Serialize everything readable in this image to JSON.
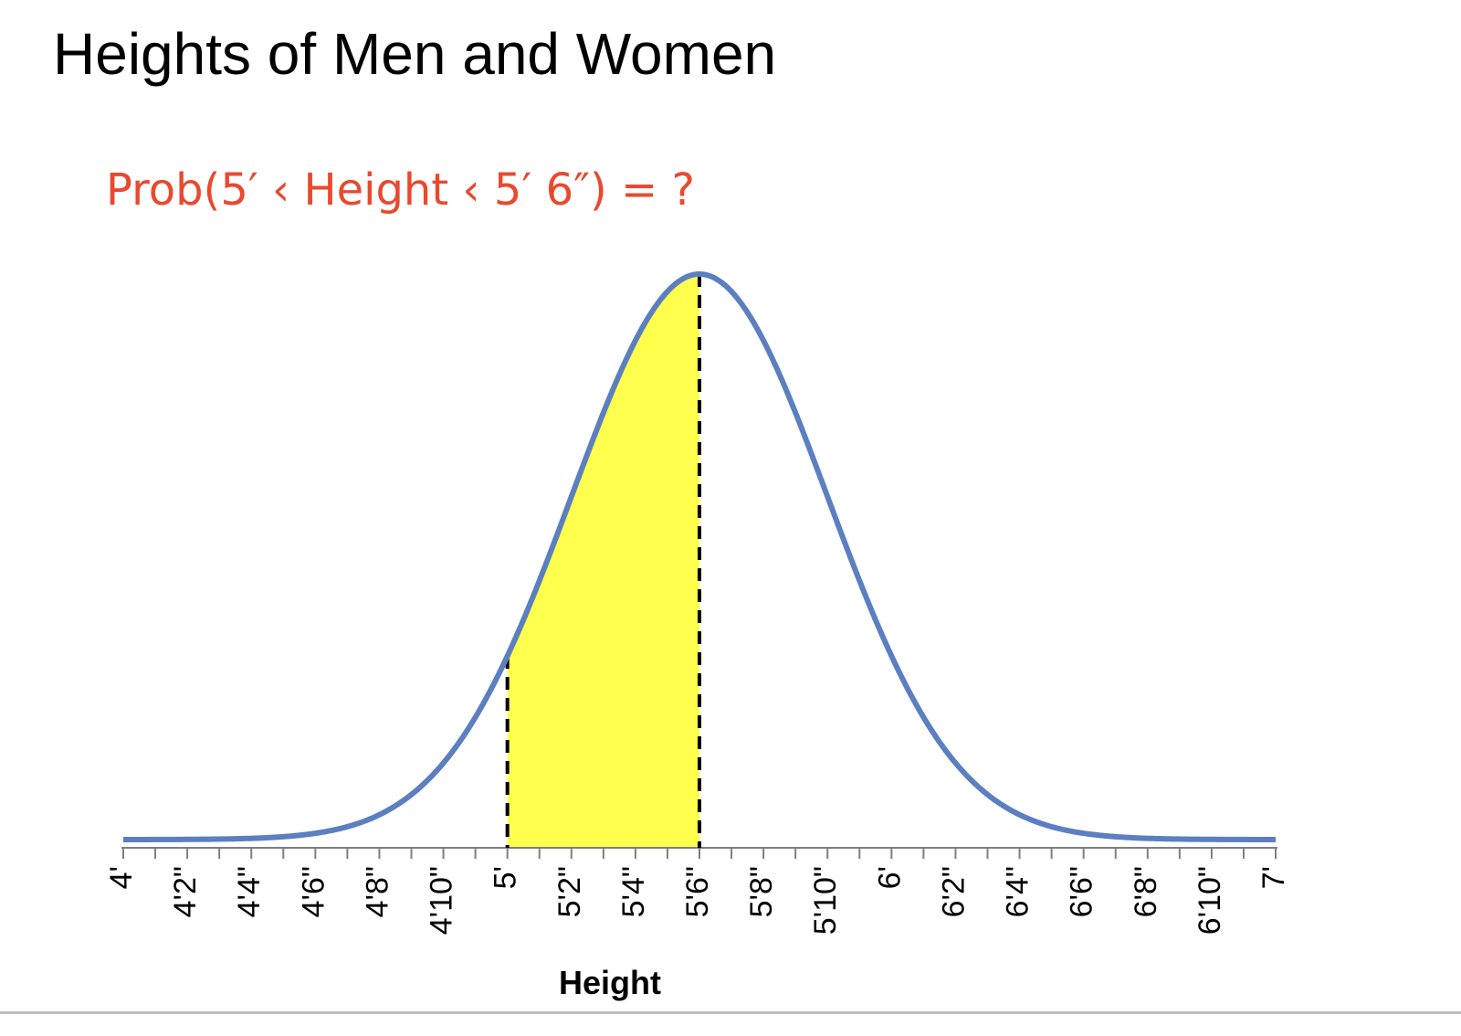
{
  "title": "Heights of Men and Women",
  "question": "Prob(5′ ‹ Height ‹ 5′ 6″) = ?",
  "colors": {
    "curve": "#5b7fc0",
    "shade": "#ffff4d",
    "question": "#e8492f",
    "axis": "#7f7f7f"
  },
  "chart_data": {
    "type": "area",
    "distribution": "normal",
    "mean_inches": 66,
    "sd_inches": 4,
    "x_range_inches": [
      48,
      84
    ],
    "shaded_range_inches": [
      60,
      66
    ],
    "xlabel": "Height",
    "ylabel": "",
    "y_axis": "none",
    "grid": false,
    "legend": "none",
    "tick_labels": [
      "4'",
      "4'2\"",
      "4'4\"",
      "4'6\"",
      "4'8\"",
      "4'10\"",
      "5'",
      "5'2\"",
      "5'4\"",
      "5'6\"",
      "5'8\"",
      "5'10\"",
      "6'",
      "6'2\"",
      "6'4\"",
      "6'6\"",
      "6'8\"",
      "6'10\"",
      "7'"
    ],
    "tick_values_inches": [
      48,
      50,
      52,
      54,
      56,
      58,
      60,
      62,
      64,
      66,
      68,
      70,
      72,
      74,
      76,
      78,
      80,
      82,
      84
    ],
    "minor_tick_step_inches": 1
  }
}
